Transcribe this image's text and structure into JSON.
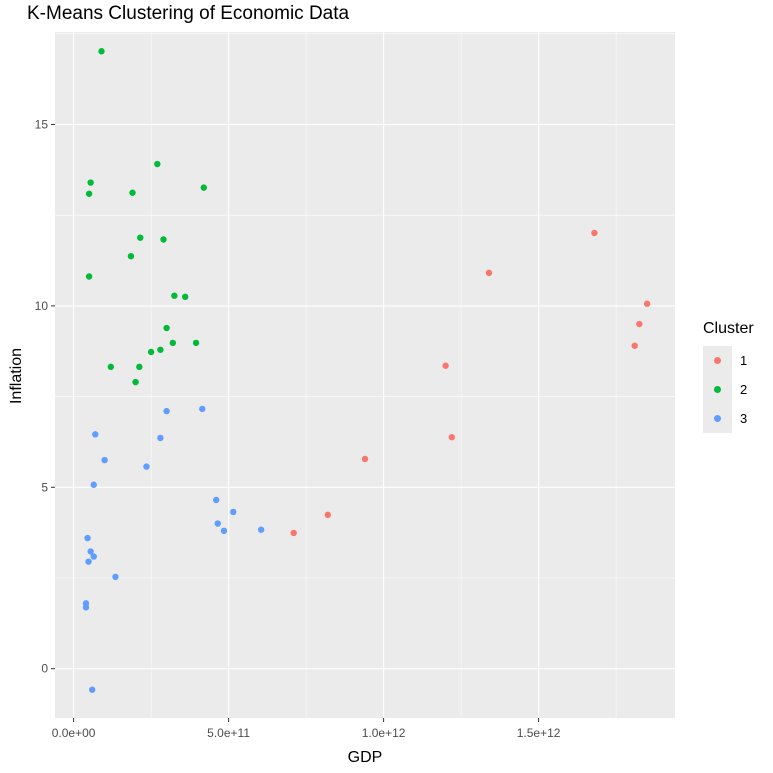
{
  "chart_data": {
    "type": "scatter",
    "title": "K-Means Clustering of Economic Data",
    "xlabel": "GDP",
    "ylabel": "Inflation",
    "xlim": [
      -60000000000.0,
      1940000000000.0
    ],
    "ylim": [
      -1.36,
      17.55
    ],
    "x_ticks": [
      {
        "value": 0,
        "label": "0.0e+00"
      },
      {
        "value": 500000000000,
        "label": "5.0e+11"
      },
      {
        "value": 1000000000000,
        "label": "1.0e+12"
      },
      {
        "value": 1500000000000,
        "label": "1.5e+12"
      }
    ],
    "y_ticks": [
      {
        "value": 0,
        "label": "0"
      },
      {
        "value": 5,
        "label": "5"
      },
      {
        "value": 10,
        "label": "10"
      },
      {
        "value": 15,
        "label": "15"
      }
    ],
    "grid": true,
    "legend": {
      "title": "Cluster",
      "position": "right"
    },
    "series": [
      {
        "name": "1",
        "color": "#F8766D",
        "points": [
          {
            "x": 710000000000,
            "y": 3.74
          },
          {
            "x": 820000000000,
            "y": 4.24
          },
          {
            "x": 940000000000,
            "y": 5.78
          },
          {
            "x": 1200000000000,
            "y": 8.35
          },
          {
            "x": 1220000000000,
            "y": 6.38
          },
          {
            "x": 1340000000000,
            "y": 10.91
          },
          {
            "x": 1680000000000,
            "y": 12.01
          },
          {
            "x": 1810000000000,
            "y": 8.9
          },
          {
            "x": 1825000000000,
            "y": 9.5
          },
          {
            "x": 1850000000000,
            "y": 10.06
          }
        ]
      },
      {
        "name": "2",
        "color": "#00BA38",
        "points": [
          {
            "x": 90000000000,
            "y": 17.02
          },
          {
            "x": 270000000000,
            "y": 13.91
          },
          {
            "x": 55000000000,
            "y": 13.4
          },
          {
            "x": 50000000000,
            "y": 13.09
          },
          {
            "x": 190000000000,
            "y": 13.12
          },
          {
            "x": 420000000000,
            "y": 13.26
          },
          {
            "x": 215000000000,
            "y": 11.88
          },
          {
            "x": 290000000000,
            "y": 11.83
          },
          {
            "x": 185000000000,
            "y": 11.37
          },
          {
            "x": 50000000000,
            "y": 10.81
          },
          {
            "x": 325000000000,
            "y": 10.28
          },
          {
            "x": 360000000000,
            "y": 10.25
          },
          {
            "x": 300000000000,
            "y": 9.39
          },
          {
            "x": 395000000000,
            "y": 8.98
          },
          {
            "x": 320000000000,
            "y": 8.98
          },
          {
            "x": 280000000000,
            "y": 8.79
          },
          {
            "x": 250000000000,
            "y": 8.73
          },
          {
            "x": 120000000000,
            "y": 8.32
          },
          {
            "x": 212000000000,
            "y": 8.32
          },
          {
            "x": 200000000000,
            "y": 7.9
          }
        ]
      },
      {
        "name": "3",
        "color": "#619CFF",
        "points": [
          {
            "x": 300000000000,
            "y": 7.1
          },
          {
            "x": 415000000000,
            "y": 7.16
          },
          {
            "x": 70000000000,
            "y": 6.46
          },
          {
            "x": 280000000000,
            "y": 6.36
          },
          {
            "x": 100000000000,
            "y": 5.75
          },
          {
            "x": 235000000000,
            "y": 5.57
          },
          {
            "x": 65000000000,
            "y": 5.07
          },
          {
            "x": 460000000000,
            "y": 4.65
          },
          {
            "x": 515000000000,
            "y": 4.32
          },
          {
            "x": 465000000000,
            "y": 4.0
          },
          {
            "x": 485000000000,
            "y": 3.8
          },
          {
            "x": 605000000000,
            "y": 3.83
          },
          {
            "x": 45000000000,
            "y": 3.6
          },
          {
            "x": 55000000000,
            "y": 3.23
          },
          {
            "x": 65000000000,
            "y": 3.09
          },
          {
            "x": 48000000000,
            "y": 2.95
          },
          {
            "x": 135000000000,
            "y": 2.53
          },
          {
            "x": 40000000000,
            "y": 1.8
          },
          {
            "x": 40000000000,
            "y": 1.69
          },
          {
            "x": 60000000000,
            "y": -0.58
          }
        ]
      }
    ]
  }
}
